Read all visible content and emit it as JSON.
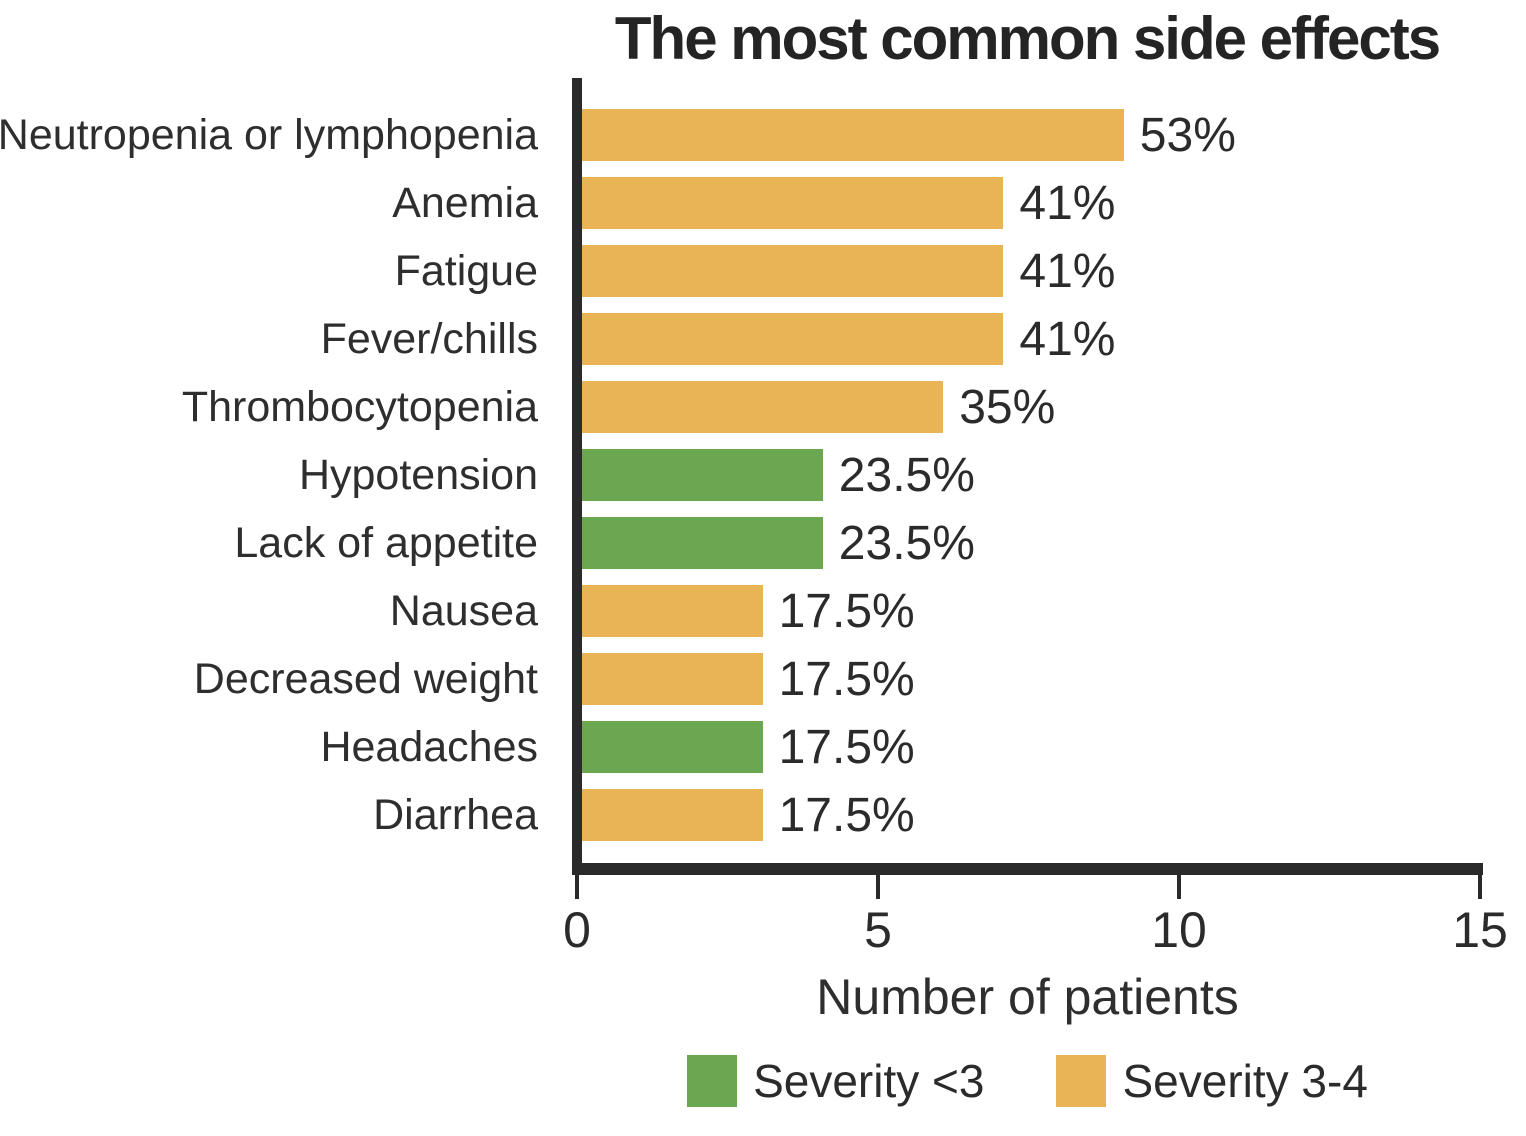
{
  "chart_data": {
    "type": "bar",
    "orientation": "horizontal",
    "title": "The most common side effects",
    "xlabel": "Number of patients",
    "xlim": [
      0,
      15
    ],
    "xticks": [
      0,
      5,
      10,
      15
    ],
    "grid": false,
    "legend_position": "bottom",
    "categories": [
      "Neutropenia or lymphopenia",
      "Anemia",
      "Fatigue",
      "Fever/chills",
      "Thrombocytopenia",
      "Hypotension",
      "Lack of appetite",
      "Nausea",
      "Decreased weight",
      "Headaches",
      "Diarrhea"
    ],
    "values": [
      9,
      7,
      7,
      7,
      6,
      4,
      4,
      3,
      3,
      3,
      3
    ],
    "value_labels": [
      "53%",
      "41%",
      "41%",
      "41%",
      "35%",
      "23.5%",
      "23.5%",
      "17.5%",
      "17.5%",
      "17.5%",
      "17.5%"
    ],
    "bar_series": [
      "Severity 3-4",
      "Severity 3-4",
      "Severity 3-4",
      "Severity 3-4",
      "Severity 3-4",
      "Severity <3",
      "Severity <3",
      "Severity 3-4",
      "Severity 3-4",
      "Severity <3",
      "Severity 3-4"
    ],
    "legend": [
      {
        "label": "Severity <3",
        "color": "#6ba651"
      },
      {
        "label": "Severity 3-4",
        "color": "#e9b456"
      }
    ]
  },
  "colors": {
    "axis": "#2a2a2a",
    "text": "#2e2e2e",
    "background": "#ffffff"
  }
}
